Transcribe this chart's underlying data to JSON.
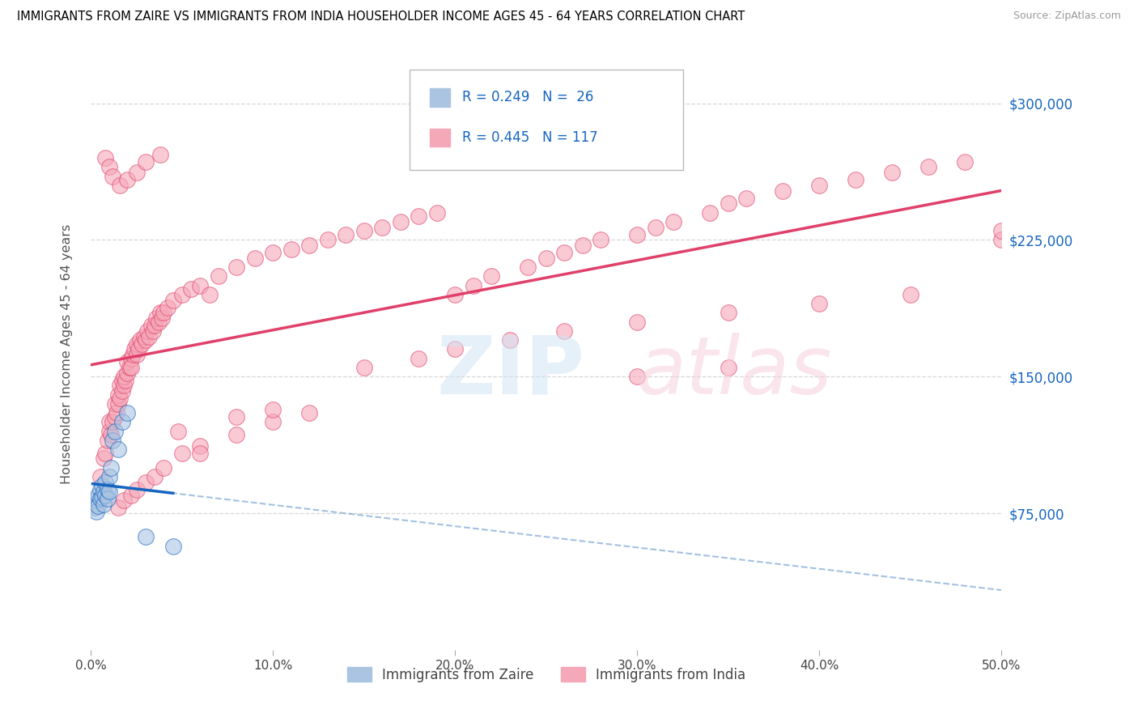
{
  "title": "IMMIGRANTS FROM ZAIRE VS IMMIGRANTS FROM INDIA HOUSEHOLDER INCOME AGES 45 - 64 YEARS CORRELATION CHART",
  "source": "Source: ZipAtlas.com",
  "xlabel_ticks": [
    "0.0%",
    "10.0%",
    "20.0%",
    "30.0%",
    "40.0%",
    "50.0%"
  ],
  "ylabel_label": "Householder Income Ages 45 - 64 years",
  "ylabel_ticks": [
    "$75,000",
    "$150,000",
    "$225,000",
    "$300,000"
  ],
  "ylabel_vals": [
    75000,
    150000,
    225000,
    300000
  ],
  "xlim": [
    0.0,
    0.5
  ],
  "ylim": [
    0,
    325000
  ],
  "xtick_vals": [
    0.0,
    0.1,
    0.2,
    0.3,
    0.4,
    0.5
  ],
  "zaire_color": "#aac4e2",
  "india_color": "#f5a8b8",
  "zaire_line_color": "#1565c0",
  "india_line_color": "#e0406a",
  "zaire_dash_color": "#6699cc",
  "india_dash_color": "#e0406a",
  "legend_r_zaire": "R = 0.249",
  "legend_n_zaire": "N =  26",
  "legend_r_india": "R = 0.445",
  "legend_n_india": "N = 117",
  "legend_label_zaire": "Immigrants from Zaire",
  "legend_label_india": "Immigrants from India",
  "legend_text_color": "#1565c0",
  "zaire_scatter_x": [
    0.001,
    0.002,
    0.003,
    0.003,
    0.004,
    0.004,
    0.005,
    0.005,
    0.006,
    0.006,
    0.007,
    0.007,
    0.008,
    0.008,
    0.009,
    0.009,
    0.01,
    0.01,
    0.011,
    0.012,
    0.013,
    0.015,
    0.017,
    0.02,
    0.03,
    0.045
  ],
  "zaire_scatter_y": [
    80000,
    78000,
    82000,
    76000,
    85000,
    79000,
    88000,
    83000,
    90000,
    84000,
    87000,
    80000,
    92000,
    85000,
    88000,
    83000,
    95000,
    87000,
    100000,
    115000,
    120000,
    110000,
    125000,
    130000,
    62000,
    57000
  ],
  "india_scatter_x": [
    0.005,
    0.007,
    0.008,
    0.009,
    0.01,
    0.01,
    0.011,
    0.012,
    0.013,
    0.013,
    0.014,
    0.015,
    0.015,
    0.016,
    0.016,
    0.017,
    0.017,
    0.018,
    0.018,
    0.019,
    0.02,
    0.02,
    0.021,
    0.022,
    0.022,
    0.023,
    0.024,
    0.025,
    0.025,
    0.026,
    0.027,
    0.028,
    0.029,
    0.03,
    0.031,
    0.032,
    0.033,
    0.034,
    0.035,
    0.036,
    0.037,
    0.038,
    0.039,
    0.04,
    0.042,
    0.045,
    0.05,
    0.055,
    0.06,
    0.065,
    0.07,
    0.08,
    0.09,
    0.1,
    0.11,
    0.12,
    0.13,
    0.14,
    0.15,
    0.16,
    0.17,
    0.18,
    0.19,
    0.2,
    0.21,
    0.22,
    0.24,
    0.25,
    0.26,
    0.27,
    0.28,
    0.3,
    0.31,
    0.32,
    0.34,
    0.35,
    0.36,
    0.38,
    0.4,
    0.42,
    0.44,
    0.46,
    0.48,
    0.5,
    0.015,
    0.018,
    0.022,
    0.025,
    0.03,
    0.035,
    0.04,
    0.05,
    0.06,
    0.08,
    0.1,
    0.12,
    0.15,
    0.18,
    0.2,
    0.23,
    0.26,
    0.3,
    0.35,
    0.4,
    0.45,
    0.008,
    0.01,
    0.012,
    0.016,
    0.02,
    0.025,
    0.03,
    0.038,
    0.048,
    0.06,
    0.08,
    0.1,
    0.3,
    0.35,
    0.5
  ],
  "india_scatter_y": [
    95000,
    105000,
    108000,
    115000,
    120000,
    125000,
    118000,
    125000,
    128000,
    135000,
    130000,
    135000,
    140000,
    138000,
    145000,
    142000,
    148000,
    145000,
    150000,
    148000,
    152000,
    158000,
    155000,
    160000,
    155000,
    162000,
    165000,
    162000,
    168000,
    165000,
    170000,
    168000,
    172000,
    170000,
    175000,
    172000,
    178000,
    175000,
    178000,
    182000,
    180000,
    185000,
    182000,
    185000,
    188000,
    192000,
    195000,
    198000,
    200000,
    195000,
    205000,
    210000,
    215000,
    218000,
    220000,
    222000,
    225000,
    228000,
    230000,
    232000,
    235000,
    238000,
    240000,
    195000,
    200000,
    205000,
    210000,
    215000,
    218000,
    222000,
    225000,
    228000,
    232000,
    235000,
    240000,
    245000,
    248000,
    252000,
    255000,
    258000,
    262000,
    265000,
    268000,
    225000,
    78000,
    82000,
    85000,
    88000,
    92000,
    95000,
    100000,
    108000,
    112000,
    118000,
    125000,
    130000,
    155000,
    160000,
    165000,
    170000,
    175000,
    180000,
    185000,
    190000,
    195000,
    270000,
    265000,
    260000,
    255000,
    258000,
    262000,
    268000,
    272000,
    120000,
    108000,
    128000,
    132000,
    150000,
    155000,
    230000
  ]
}
